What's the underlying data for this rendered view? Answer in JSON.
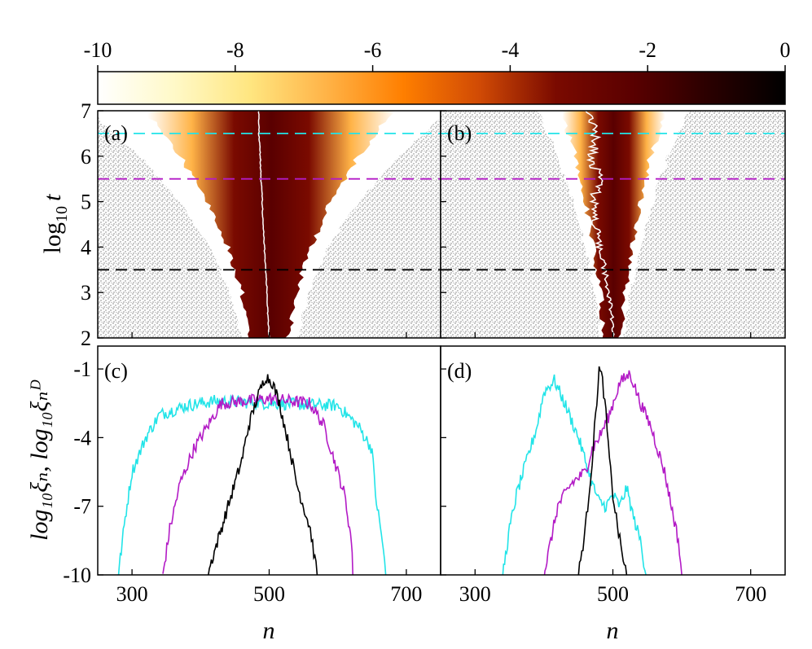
{
  "figure": {
    "colorbar": {
      "ticks": [
        -10,
        -8,
        -6,
        -4,
        -2,
        0
      ],
      "tick_labels": [
        "-10",
        "-8",
        "-6",
        "-4",
        "-2",
        "0"
      ],
      "range": [
        -10,
        0
      ],
      "colormap": [
        "#ffffff",
        "#fff9c8",
        "#ffe680",
        "#ffb347",
        "#ff7f00",
        "#d04a05",
        "#7a0a00",
        "#5a0000",
        "#2a0000",
        "#000000"
      ]
    },
    "colors": {
      "cyan": "#22e4e8",
      "magenta": "#b31bc6",
      "black": "#000000",
      "gray": "#c8c8c8",
      "white_line": "#ffffff"
    }
  },
  "chart_data": [
    {
      "id": "a",
      "type": "heatmap",
      "panel_label": "(a)",
      "ylabel": "log10 t",
      "ylabel_main": "log",
      "ylabel_sub": "10",
      "ylabel_var": "t",
      "y_ticks": [
        "2",
        "3",
        "4",
        "5",
        "6",
        "7"
      ],
      "ylim": [
        2,
        7
      ],
      "xlim": [
        250,
        750
      ],
      "guide_lines": [
        {
          "log10_t": 6.5,
          "color": "cyan"
        },
        {
          "log10_t": 5.5,
          "color": "magenta"
        },
        {
          "log10_t": 3.5,
          "color": "black"
        }
      ],
      "spread_profile": {
        "log10_t": [
          2,
          3,
          4,
          5,
          6,
          7
        ],
        "half_width": [
          28,
          40,
          60,
          90,
          130,
          180
        ],
        "center": 500
      },
      "center_path_n": [
        500,
        498,
        497,
        495,
        493,
        491,
        490,
        488,
        487,
        485,
        485
      ]
    },
    {
      "id": "b",
      "type": "heatmap",
      "panel_label": "(b)",
      "y_ticks": [
        "2",
        "3",
        "4",
        "5",
        "6",
        "7"
      ],
      "ylim": [
        2,
        7
      ],
      "xlim": [
        250,
        750
      ],
      "guide_lines": [
        {
          "log10_t": 6.5,
          "color": "cyan"
        },
        {
          "log10_t": 5.5,
          "color": "magenta"
        },
        {
          "log10_t": 3.5,
          "color": "black"
        }
      ],
      "spread_profile": {
        "log10_t": [
          2,
          3,
          4,
          5,
          6,
          7
        ],
        "half_width": [
          12,
          18,
          28,
          40,
          55,
          75
        ],
        "center": 500
      },
      "center_path_n": [
        500,
        498,
        494,
        488,
        480,
        475,
        472,
        480,
        470,
        478,
        465
      ]
    },
    {
      "id": "c",
      "type": "line",
      "panel_label": "(c)",
      "ylabel": "log10 ξn, log10 ξn^D",
      "ylabel_text": "log₁₀ξₙ, log₁₀ξₙᴰ",
      "x_ticks": [
        "300",
        "500",
        "700"
      ],
      "y_ticks": [
        "-1",
        "-4",
        "-7",
        "-10"
      ],
      "xlabel": "n",
      "xlim": [
        250,
        750
      ],
      "ylim": [
        -10,
        0
      ],
      "series": [
        {
          "name": "cyan",
          "color": "cyan",
          "x": [
            280,
            290,
            300,
            320,
            340,
            380,
            420,
            500,
            600,
            630,
            650,
            655,
            665,
            670
          ],
          "y": [
            -10,
            -7.5,
            -5.5,
            -4,
            -3,
            -2.6,
            -2.4,
            -2.5,
            -2.6,
            -3.5,
            -4.5,
            -6.5,
            -8.5,
            -10
          ]
        },
        {
          "name": "magenta",
          "color": "magenta",
          "x": [
            345,
            355,
            370,
            390,
            410,
            430,
            500,
            560,
            580,
            590,
            600,
            610,
            620,
            622
          ],
          "y": [
            -10,
            -8,
            -6,
            -4.5,
            -3.5,
            -2.5,
            -2.3,
            -2.5,
            -3.5,
            -4.5,
            -5.5,
            -6.5,
            -8.5,
            -10
          ]
        },
        {
          "name": "black",
          "color": "black",
          "x": [
            410,
            420,
            430,
            440,
            450,
            460,
            470,
            480,
            495,
            505,
            515,
            530,
            540,
            550,
            560,
            565,
            570
          ],
          "y": [
            -10,
            -9,
            -8,
            -7,
            -6,
            -5,
            -3.5,
            -2.5,
            -1.3,
            -1.6,
            -2.5,
            -4.5,
            -6,
            -7,
            -8,
            -9,
            -10
          ]
        }
      ]
    },
    {
      "id": "d",
      "type": "line",
      "panel_label": "(d)",
      "x_ticks": [
        "300",
        "500",
        "700"
      ],
      "xlabel": "n",
      "xlim": [
        250,
        750
      ],
      "ylim": [
        -10,
        0
      ],
      "series": [
        {
          "name": "cyan",
          "color": "cyan",
          "x": [
            340,
            350,
            360,
            375,
            390,
            400,
            415,
            430,
            450,
            460,
            470,
            480,
            490,
            500,
            510,
            520,
            530,
            540,
            548
          ],
          "y": [
            -10,
            -8,
            -6.5,
            -5,
            -3.5,
            -2,
            -1.5,
            -2.5,
            -4,
            -5,
            -6,
            -6.8,
            -7,
            -6.5,
            -7,
            -6.2,
            -7.5,
            -8.5,
            -10
          ]
        },
        {
          "name": "magenta",
          "color": "magenta",
          "x": [
            400,
            410,
            420,
            440,
            460,
            470,
            480,
            495,
            510,
            525,
            540,
            555,
            565,
            575,
            585,
            595,
            600
          ],
          "y": [
            -10,
            -8.5,
            -7,
            -6,
            -5.5,
            -4.5,
            -4,
            -3,
            -1.6,
            -1.2,
            -2.5,
            -3.5,
            -4.5,
            -5.5,
            -7,
            -8.5,
            -10
          ]
        },
        {
          "name": "black",
          "color": "black",
          "x": [
            450,
            455,
            460,
            465,
            470,
            475,
            480,
            485,
            490,
            495,
            500,
            505,
            510,
            515,
            520
          ],
          "y": [
            -10,
            -9,
            -8,
            -6.5,
            -5,
            -3,
            -1,
            -1.5,
            -3,
            -5,
            -6.5,
            -7.5,
            -8.5,
            -9.3,
            -10
          ]
        }
      ]
    }
  ]
}
